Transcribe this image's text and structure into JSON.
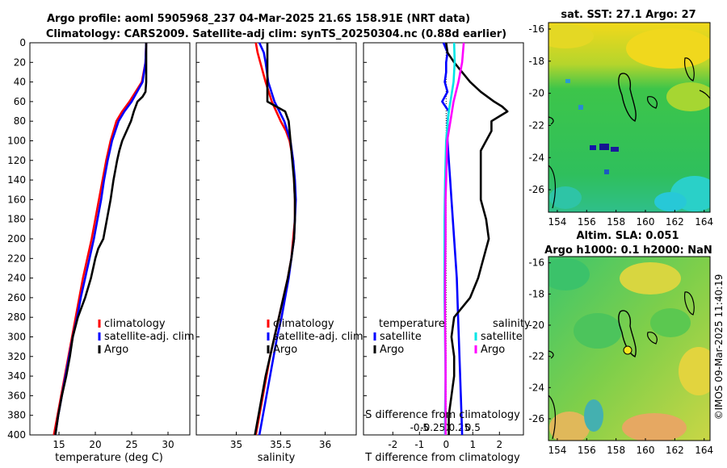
{
  "title": {
    "line1": "Argo profile: aoml 5905968_237 04-Mar-2025 21.6S 158.91E (NRT data)",
    "line2": "Climatology: CARS2009. Satellite-adj clim: synTS_20250304.nc (0.88d earlier)"
  },
  "stamp": "©IMOS 09-Mar-2025 11:40:19",
  "colors": {
    "climatology": "#ff0000",
    "satellite": "#0000ff",
    "argo": "#000000",
    "satellite_salinity": "#00e5e5",
    "argo_salinity": "#ff00ff"
  },
  "chart_data": [
    {
      "type": "line",
      "name": "temperature-profile",
      "xlabel": "temperature (deg C)",
      "ylabel": "",
      "xlim": [
        11,
        33
      ],
      "ylim": [
        400,
        0
      ],
      "x_ticks": [
        15,
        20,
        25,
        30
      ],
      "y_ticks": [
        0,
        20,
        40,
        60,
        80,
        100,
        120,
        140,
        160,
        180,
        200,
        220,
        240,
        260,
        280,
        300,
        320,
        340,
        360,
        380,
        400
      ],
      "legend": [
        "climatology",
        "satellite-adj. clim",
        "Argo"
      ],
      "legend_position": "lower-right",
      "series": [
        {
          "name": "climatology",
          "color": "#ff0000",
          "depth": [
            0,
            20,
            40,
            60,
            70,
            80,
            100,
            120,
            140,
            160,
            180,
            200,
            220,
            240,
            260,
            280,
            300,
            320,
            340,
            360,
            380,
            400
          ],
          "values": [
            27.0,
            26.9,
            26.4,
            24.7,
            23.7,
            22.9,
            22.1,
            21.5,
            21.0,
            20.5,
            20.0,
            19.5,
            18.9,
            18.3,
            17.8,
            17.3,
            16.8,
            16.3,
            15.8,
            15.3,
            14.8,
            14.3
          ]
        },
        {
          "name": "satellite-adj. clim",
          "color": "#0000ff",
          "depth": [
            0,
            20,
            40,
            60,
            70,
            80,
            100,
            120,
            140,
            160,
            180,
            200,
            220,
            240,
            260,
            280,
            300,
            320,
            340,
            360,
            380,
            400
          ],
          "values": [
            27.0,
            26.9,
            26.5,
            25.0,
            24.0,
            23.2,
            22.3,
            21.7,
            21.2,
            20.8,
            20.3,
            19.8,
            19.2,
            18.6,
            18.0,
            17.5,
            16.9,
            16.4,
            15.9,
            15.4,
            14.9,
            14.5
          ]
        },
        {
          "name": "Argo",
          "color": "#000000",
          "depth": [
            0,
            20,
            40,
            50,
            55,
            60,
            70,
            80,
            90,
            100,
            110,
            120,
            140,
            160,
            180,
            200,
            210,
            220,
            240,
            260,
            280,
            300,
            320,
            340,
            360,
            380,
            400
          ],
          "values": [
            27.0,
            27.0,
            27.0,
            26.9,
            26.5,
            25.8,
            25.3,
            24.9,
            24.3,
            23.7,
            23.3,
            23.0,
            22.5,
            22.1,
            21.6,
            21.1,
            20.4,
            20.0,
            19.4,
            18.6,
            17.6,
            16.9,
            16.5,
            16.0,
            15.4,
            14.9,
            14.5
          ]
        }
      ]
    },
    {
      "type": "line",
      "name": "salinity-profile",
      "xlabel": "salinity",
      "ylabel": "",
      "xlim": [
        34.55,
        36.35
      ],
      "ylim": [
        400,
        0
      ],
      "x_ticks": [
        35,
        35.5,
        36
      ],
      "x_tick_labels": [
        "35",
        "35.5",
        "36"
      ],
      "legend": [
        "climatology",
        "satellite-adj. clim",
        "Argo"
      ],
      "legend_position": "lower-right",
      "series": [
        {
          "name": "climatology",
          "color": "#ff0000",
          "depth": [
            0,
            10,
            20,
            40,
            60,
            80,
            90,
            100,
            110,
            120,
            140,
            160,
            180,
            200,
            220,
            240,
            260,
            280,
            300,
            320,
            340,
            360,
            380,
            400
          ],
          "values": [
            35.22,
            35.24,
            35.27,
            35.33,
            35.4,
            35.5,
            35.56,
            35.6,
            35.62,
            35.64,
            35.65,
            35.66,
            35.66,
            35.64,
            35.62,
            35.58,
            35.53,
            35.48,
            35.43,
            35.38,
            35.34,
            35.3,
            35.26,
            35.22
          ]
        },
        {
          "name": "satellite-adj. clim",
          "color": "#0000ff",
          "depth": [
            0,
            10,
            20,
            40,
            60,
            80,
            100,
            120,
            140,
            160,
            180,
            200,
            220,
            240,
            260,
            280,
            300,
            320,
            340,
            360,
            380,
            400
          ],
          "values": [
            35.26,
            35.31,
            35.33,
            35.36,
            35.43,
            35.54,
            35.61,
            35.64,
            35.66,
            35.67,
            35.66,
            35.65,
            35.62,
            35.59,
            35.55,
            35.51,
            35.46,
            35.42,
            35.38,
            35.34,
            35.3,
            35.26
          ]
        },
        {
          "name": "Argo",
          "color": "#000000",
          "depth": [
            0,
            20,
            40,
            60,
            70,
            80,
            90,
            100,
            110,
            120,
            140,
            160,
            180,
            200,
            220,
            240,
            260,
            280,
            300,
            320,
            340,
            360,
            380,
            400
          ],
          "values": [
            35.35,
            35.35,
            35.35,
            35.35,
            35.55,
            35.59,
            35.6,
            35.61,
            35.62,
            35.63,
            35.65,
            35.66,
            35.66,
            35.65,
            35.62,
            35.58,
            35.53,
            35.48,
            35.43,
            35.38,
            35.33,
            35.29,
            35.25,
            35.21
          ]
        }
      ]
    },
    {
      "type": "line",
      "name": "difference-profile",
      "xlabel": "T difference from climatology",
      "secondary_xlabel": "S difference from climatology",
      "ylabel": "",
      "xlim": [
        -3.1,
        2.9
      ],
      "ylim": [
        400,
        0
      ],
      "x_ticks": [
        -2,
        -1,
        0,
        1,
        2
      ],
      "x_tick_labels": [
        "-2",
        "-1",
        "0",
        "1",
        "2"
      ],
      "secondary_x_ticks": [
        -0.5,
        -0.25,
        0,
        0.25,
        0.5
      ],
      "secondary_x_tick_labels": [
        "-0.5",
        "-0.25",
        "0",
        "0.25",
        "0.5"
      ],
      "legend_temperature": {
        "heading": "temperature",
        "items": [
          "satellite",
          "Argo"
        ]
      },
      "legend_salinity": {
        "heading": "salinity",
        "items": [
          "satellite",
          "Argo"
        ]
      },
      "legend_position": "lower-middle",
      "series": [
        {
          "name": "temperature satellite",
          "color": "#0000ff",
          "depth": [
            0,
            10,
            20,
            30,
            40,
            50,
            60,
            70,
            80,
            100,
            120,
            140,
            160,
            200,
            240,
            280,
            320,
            360,
            400
          ],
          "values": [
            -0.1,
            0.05,
            0.0,
            0.0,
            -0.05,
            0.05,
            -0.15,
            0.1,
            0.05,
            0.05,
            0.1,
            0.15,
            0.2,
            0.3,
            0.4,
            0.45,
            0.5,
            0.55,
            0.6
          ]
        },
        {
          "name": "temperature Argo",
          "color": "#000000",
          "depth": [
            0,
            10,
            20,
            30,
            40,
            50,
            60,
            65,
            70,
            75,
            80,
            90,
            100,
            110,
            120,
            140,
            160,
            180,
            200,
            220,
            240,
            260,
            270,
            280,
            300,
            320,
            340,
            360,
            380,
            400
          ],
          "values": [
            0.0,
            0.05,
            0.3,
            0.6,
            0.9,
            1.3,
            1.8,
            2.1,
            2.3,
            2.0,
            1.7,
            1.7,
            1.5,
            1.3,
            1.3,
            1.3,
            1.3,
            1.5,
            1.6,
            1.4,
            1.2,
            0.9,
            0.6,
            0.3,
            0.2,
            0.3,
            0.3,
            0.2,
            0.1,
            0.1
          ]
        },
        {
          "name": "salinity satellite",
          "color": "#00e5e5",
          "depth": [
            0,
            20,
            40,
            60,
            70,
            80,
            100,
            140,
            180,
            220,
            260,
            300,
            340,
            380,
            400
          ],
          "values": [
            0.15,
            0.16,
            0.14,
            0.08,
            0.05,
            0.03,
            0.0,
            -0.02,
            -0.03,
            -0.03,
            -0.03,
            -0.02,
            -0.01,
            -0.02,
            -0.02
          ]
        },
        {
          "name": "salinity Argo",
          "color": "#ff00ff",
          "depth": [
            0,
            20,
            40,
            60,
            80,
            100,
            120,
            160,
            200,
            240,
            280,
            320,
            360,
            400
          ],
          "values": [
            0.33,
            0.3,
            0.23,
            0.14,
            0.08,
            0.02,
            0.01,
            -0.01,
            -0.01,
            -0.02,
            -0.02,
            -0.01,
            -0.01,
            -0.01
          ]
        }
      ]
    },
    {
      "type": "heatmap",
      "name": "sst-map",
      "title": "sat. SST: 27.1 Argo: 27",
      "x_ticks": [
        "154",
        "156",
        "158",
        "160",
        "162",
        "164"
      ],
      "y_ticks": [
        "-16",
        "-18",
        "-20",
        "-22",
        "-24",
        "-26"
      ],
      "xlim": [
        153.4,
        164.4
      ],
      "ylim": [
        -27.4,
        -15.6
      ],
      "argo_position": {
        "lon": 158.91,
        "lat": -21.6
      }
    },
    {
      "type": "heatmap",
      "name": "sla-map",
      "title_line1": "Altim. SLA: 0.051",
      "title_line2": "Argo h1000: 0.1 h2000: NaN",
      "x_ticks": [
        "154",
        "156",
        "158",
        "160",
        "162",
        "164"
      ],
      "y_ticks": [
        "-16",
        "-18",
        "-20",
        "-22",
        "-24",
        "-26"
      ],
      "xlim": [
        153.4,
        164.4
      ],
      "ylim": [
        -27.4,
        -15.6
      ],
      "argo_position": {
        "lon": 158.91,
        "lat": -21.6
      }
    }
  ]
}
